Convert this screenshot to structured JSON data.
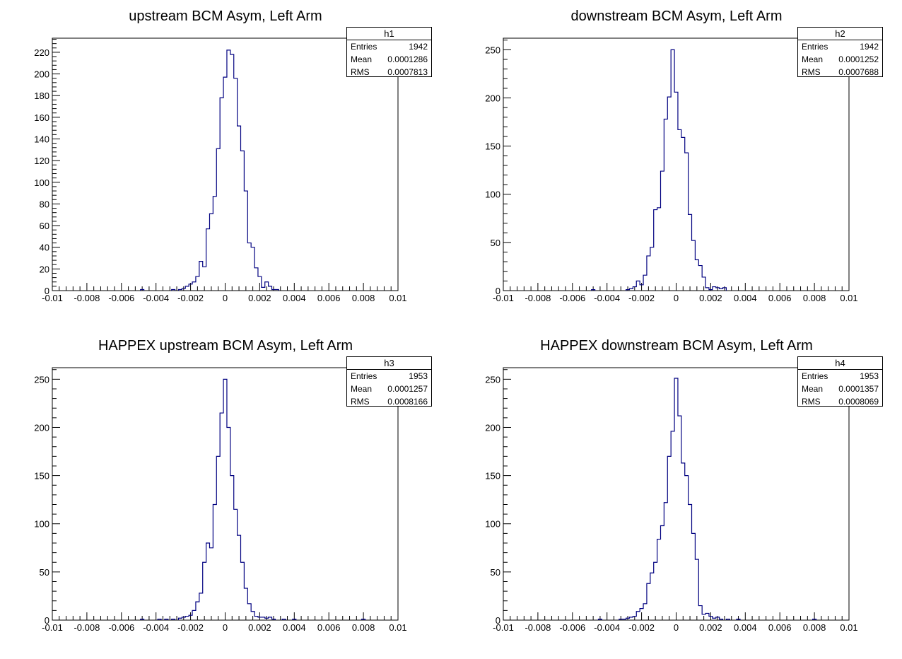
{
  "panels": [
    {
      "title": "upstream BCM Asym, Left Arm",
      "stats": {
        "name": "h1",
        "entries_label": "Entries",
        "entries": "1942",
        "mean_label": "Mean",
        "mean": "0.0001286",
        "rms_label": "RMS",
        "rms": "0.0007813"
      }
    },
    {
      "title": "downstream BCM Asym, Left Arm",
      "stats": {
        "name": "h2",
        "entries_label": "Entries",
        "entries": "1942",
        "mean_label": "Mean",
        "mean": "0.0001252",
        "rms_label": "RMS",
        "rms": "0.0007688"
      }
    },
    {
      "title": "HAPPEX upstream BCM Asym, Left Arm",
      "stats": {
        "name": "h3",
        "entries_label": "Entries",
        "entries": "1953",
        "mean_label": "Mean",
        "mean": "0.0001257",
        "rms_label": "RMS",
        "rms": "0.0008166"
      }
    },
    {
      "title": "HAPPEX downstream BCM Asym, Left Arm",
      "stats": {
        "name": "h4",
        "entries_label": "Entries",
        "entries": "1953",
        "mean_label": "Mean",
        "mean": "0.0001357",
        "rms_label": "RMS",
        "rms": "0.0008069"
      }
    }
  ],
  "chart_data": [
    {
      "type": "histogram",
      "title": "upstream BCM Asym, Left Arm",
      "xlim": [
        -0.01,
        0.01
      ],
      "ylim": [
        0,
        233
      ],
      "x_ticks": [
        "-0.01",
        "-0.008",
        "-0.006",
        "-0.004",
        "-0.002",
        "0",
        "0.002",
        "0.004",
        "0.006",
        "0.008",
        "0.01"
      ],
      "y_ticks": [
        "0",
        "20",
        "40",
        "60",
        "80",
        "100",
        "120",
        "140",
        "160",
        "180",
        "200",
        "220"
      ],
      "y_tick_values": [
        0,
        20,
        40,
        60,
        80,
        100,
        120,
        140,
        160,
        180,
        200,
        220
      ],
      "line_color": "#000080",
      "bins": [
        {
          "x": -0.0048,
          "y": 1
        },
        {
          "x": -0.003,
          "y": 1
        },
        {
          "x": -0.0026,
          "y": 1
        },
        {
          "x": -0.0024,
          "y": 2
        },
        {
          "x": -0.0022,
          "y": 4
        },
        {
          "x": -0.002,
          "y": 6
        },
        {
          "x": -0.0018,
          "y": 8
        },
        {
          "x": -0.0016,
          "y": 13
        },
        {
          "x": -0.0014,
          "y": 27
        },
        {
          "x": -0.0012,
          "y": 22
        },
        {
          "x": -0.001,
          "y": 57
        },
        {
          "x": -0.0008,
          "y": 71
        },
        {
          "x": -0.0006,
          "y": 87
        },
        {
          "x": -0.0004,
          "y": 131
        },
        {
          "x": -0.0002,
          "y": 178
        },
        {
          "x": 0.0,
          "y": 197
        },
        {
          "x": 0.0002,
          "y": 222
        },
        {
          "x": 0.0004,
          "y": 218
        },
        {
          "x": 0.0006,
          "y": 196
        },
        {
          "x": 0.0008,
          "y": 152
        },
        {
          "x": 0.001,
          "y": 129
        },
        {
          "x": 0.0012,
          "y": 92
        },
        {
          "x": 0.0014,
          "y": 44
        },
        {
          "x": 0.0016,
          "y": 40
        },
        {
          "x": 0.0018,
          "y": 21
        },
        {
          "x": 0.002,
          "y": 13
        },
        {
          "x": 0.0022,
          "y": 3
        },
        {
          "x": 0.0024,
          "y": 8
        },
        {
          "x": 0.0026,
          "y": 4
        },
        {
          "x": 0.0028,
          "y": 1
        },
        {
          "x": 0.003,
          "y": 1
        }
      ]
    },
    {
      "type": "histogram",
      "title": "downstream BCM Asym, Left Arm",
      "xlim": [
        -0.01,
        0.01
      ],
      "ylim": [
        0,
        262
      ],
      "x_ticks": [
        "-0.01",
        "-0.008",
        "-0.006",
        "-0.004",
        "-0.002",
        "0",
        "0.002",
        "0.004",
        "0.006",
        "0.008",
        "0.01"
      ],
      "y_ticks": [
        "0",
        "50",
        "100",
        "150",
        "200",
        "250"
      ],
      "y_tick_values": [
        0,
        50,
        100,
        150,
        200,
        250
      ],
      "line_color": "#000080",
      "bins": [
        {
          "x": -0.0048,
          "y": 1
        },
        {
          "x": -0.0028,
          "y": 1
        },
        {
          "x": -0.0026,
          "y": 2
        },
        {
          "x": -0.0024,
          "y": 4
        },
        {
          "x": -0.0022,
          "y": 10
        },
        {
          "x": -0.002,
          "y": 6
        },
        {
          "x": -0.0018,
          "y": 16
        },
        {
          "x": -0.0016,
          "y": 36
        },
        {
          "x": -0.0014,
          "y": 45
        },
        {
          "x": -0.0012,
          "y": 84
        },
        {
          "x": -0.001,
          "y": 86
        },
        {
          "x": -0.0008,
          "y": 124
        },
        {
          "x": -0.0006,
          "y": 178
        },
        {
          "x": -0.0004,
          "y": 201
        },
        {
          "x": -0.0002,
          "y": 250
        },
        {
          "x": 0.0,
          "y": 206
        },
        {
          "x": 0.0002,
          "y": 167
        },
        {
          "x": 0.0004,
          "y": 159
        },
        {
          "x": 0.0006,
          "y": 143
        },
        {
          "x": 0.0008,
          "y": 79
        },
        {
          "x": 0.001,
          "y": 52
        },
        {
          "x": 0.0012,
          "y": 32
        },
        {
          "x": 0.0014,
          "y": 26
        },
        {
          "x": 0.0016,
          "y": 14
        },
        {
          "x": 0.0018,
          "y": 3
        },
        {
          "x": 0.002,
          "y": 1
        },
        {
          "x": 0.0022,
          "y": 4
        },
        {
          "x": 0.0024,
          "y": 3
        },
        {
          "x": 0.0026,
          "y": 2
        },
        {
          "x": 0.0028,
          "y": 3
        }
      ]
    },
    {
      "type": "histogram",
      "title": "HAPPEX upstream BCM Asym, Left Arm",
      "xlim": [
        -0.01,
        0.01
      ],
      "ylim": [
        0,
        262
      ],
      "x_ticks": [
        "-0.01",
        "-0.008",
        "-0.006",
        "-0.004",
        "-0.002",
        "0",
        "0.002",
        "0.004",
        "0.006",
        "0.008",
        "0.01"
      ],
      "y_ticks": [
        "0",
        "50",
        "100",
        "150",
        "200",
        "250"
      ],
      "y_tick_values": [
        0,
        50,
        100,
        150,
        200,
        250
      ],
      "line_color": "#000080",
      "bins": [
        {
          "x": -0.0048,
          "y": 1
        },
        {
          "x": -0.0038,
          "y": 1
        },
        {
          "x": -0.0034,
          "y": 1
        },
        {
          "x": -0.003,
          "y": 1
        },
        {
          "x": -0.0026,
          "y": 2
        },
        {
          "x": -0.0024,
          "y": 3
        },
        {
          "x": -0.0022,
          "y": 4
        },
        {
          "x": -0.002,
          "y": 5
        },
        {
          "x": -0.0018,
          "y": 10
        },
        {
          "x": -0.0016,
          "y": 19
        },
        {
          "x": -0.0014,
          "y": 28
        },
        {
          "x": -0.0012,
          "y": 60
        },
        {
          "x": -0.001,
          "y": 80
        },
        {
          "x": -0.0008,
          "y": 75
        },
        {
          "x": -0.0006,
          "y": 120
        },
        {
          "x": -0.0004,
          "y": 170
        },
        {
          "x": -0.0002,
          "y": 215
        },
        {
          "x": 0.0,
          "y": 250
        },
        {
          "x": 0.0002,
          "y": 200
        },
        {
          "x": 0.0004,
          "y": 150
        },
        {
          "x": 0.0006,
          "y": 115
        },
        {
          "x": 0.0008,
          "y": 88
        },
        {
          "x": 0.001,
          "y": 60
        },
        {
          "x": 0.0012,
          "y": 33
        },
        {
          "x": 0.0014,
          "y": 17
        },
        {
          "x": 0.0016,
          "y": 9
        },
        {
          "x": 0.0018,
          "y": 4
        },
        {
          "x": 0.002,
          "y": 3
        },
        {
          "x": 0.0022,
          "y": 3
        },
        {
          "x": 0.0024,
          "y": 2
        },
        {
          "x": 0.0026,
          "y": 3
        },
        {
          "x": 0.0028,
          "y": 1
        },
        {
          "x": 0.0034,
          "y": 1
        },
        {
          "x": 0.004,
          "y": 1
        },
        {
          "x": 0.008,
          "y": 1
        }
      ]
    },
    {
      "type": "histogram",
      "title": "HAPPEX downstream BCM Asym, Left Arm",
      "xlim": [
        -0.01,
        0.01
      ],
      "ylim": [
        0,
        262
      ],
      "x_ticks": [
        "-0.01",
        "-0.008",
        "-0.006",
        "-0.004",
        "-0.002",
        "0",
        "0.002",
        "0.004",
        "0.006",
        "0.008",
        "0.01"
      ],
      "y_ticks": [
        "0",
        "50",
        "100",
        "150",
        "200",
        "250"
      ],
      "y_tick_values": [
        0,
        50,
        100,
        150,
        200,
        250
      ],
      "line_color": "#000080",
      "bins": [
        {
          "x": -0.0044,
          "y": 1
        },
        {
          "x": -0.0032,
          "y": 1
        },
        {
          "x": -0.003,
          "y": 1
        },
        {
          "x": -0.0028,
          "y": 2
        },
        {
          "x": -0.0026,
          "y": 3
        },
        {
          "x": -0.0024,
          "y": 4
        },
        {
          "x": -0.0022,
          "y": 9
        },
        {
          "x": -0.002,
          "y": 12
        },
        {
          "x": -0.0018,
          "y": 17
        },
        {
          "x": -0.0016,
          "y": 38
        },
        {
          "x": -0.0014,
          "y": 49
        },
        {
          "x": -0.0012,
          "y": 60
        },
        {
          "x": -0.001,
          "y": 84
        },
        {
          "x": -0.0008,
          "y": 98
        },
        {
          "x": -0.0006,
          "y": 122
        },
        {
          "x": -0.0004,
          "y": 170
        },
        {
          "x": -0.0002,
          "y": 196
        },
        {
          "x": 0.0,
          "y": 251
        },
        {
          "x": 0.0002,
          "y": 212
        },
        {
          "x": 0.0004,
          "y": 163
        },
        {
          "x": 0.0006,
          "y": 150
        },
        {
          "x": 0.0008,
          "y": 120
        },
        {
          "x": 0.001,
          "y": 90
        },
        {
          "x": 0.0012,
          "y": 63
        },
        {
          "x": 0.0014,
          "y": 15
        },
        {
          "x": 0.0016,
          "y": 6
        },
        {
          "x": 0.0018,
          "y": 7
        },
        {
          "x": 0.002,
          "y": 4
        },
        {
          "x": 0.0022,
          "y": 2
        },
        {
          "x": 0.0024,
          "y": 3
        },
        {
          "x": 0.0026,
          "y": 1
        },
        {
          "x": 0.003,
          "y": 1
        },
        {
          "x": 0.0036,
          "y": 1
        },
        {
          "x": 0.008,
          "y": 1
        }
      ]
    }
  ]
}
